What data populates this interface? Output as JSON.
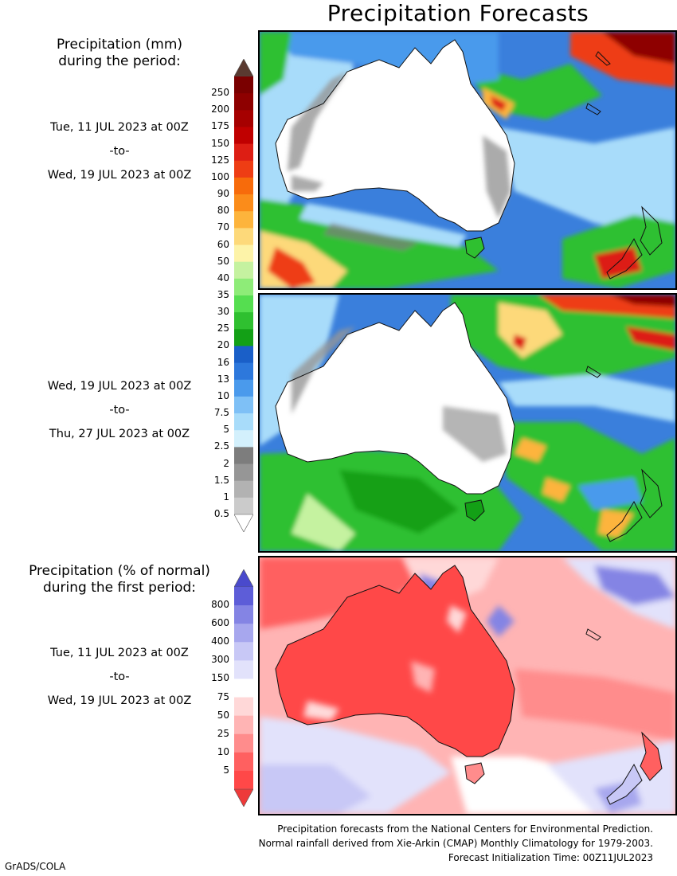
{
  "title": "Precipitation Forecasts",
  "legend1": {
    "header_lines": [
      "Precipitation (mm)",
      "during the period:"
    ],
    "labels": [
      "250",
      "200",
      "175",
      "150",
      "125",
      "100",
      "90",
      "80",
      "70",
      "60",
      "50",
      "40",
      "35",
      "30",
      "25",
      "20",
      "16",
      "13",
      "10",
      "7.5",
      "5",
      "2.5",
      "2",
      "1.5",
      "1",
      "0.5"
    ],
    "colors": [
      "#7a0000",
      "#8e0000",
      "#a60000",
      "#c00000",
      "#dd1e14",
      "#ee3d14",
      "#f76b0b",
      "#fb8c1a",
      "#fdb43c",
      "#fdd97a",
      "#fdf3a8",
      "#c5f2a0",
      "#8eec78",
      "#55de50",
      "#2fc030",
      "#13a016",
      "#1a5fc8",
      "#2d78dc",
      "#4a9aec",
      "#7ec0f6",
      "#a8dcfa",
      "#d3f0fc",
      "#7d7d7d",
      "#969696",
      "#b2b2b2",
      "#cbcbcb"
    ],
    "top_arrow_color": "#5a3a30",
    "bottom_arrow_color": "#ffffff"
  },
  "legend2": {
    "header_lines": [
      "Precipitation (% of normal)",
      "during the first period:"
    ],
    "labels": [
      "800",
      "600",
      "400",
      "300",
      "150",
      "75",
      "50",
      "25",
      "10",
      "5"
    ],
    "colors": [
      "#5d5dd8",
      "#8484e4",
      "#a7a7ee",
      "#c8c8f6",
      "#e2e2fb",
      "#ffffff",
      "#ffd8d8",
      "#ffb4b4",
      "#ff8c8c",
      "#ff6060",
      "#ff4848"
    ],
    "top_arrow_color": "#4a4acc",
    "bottom_arrow_color": "#ee3a3a"
  },
  "period1": {
    "start": "Tue, 11 JUL 2023 at 00Z",
    "sep": "-to-",
    "end": "Wed, 19 JUL 2023 at 00Z"
  },
  "period2": {
    "start": "Wed, 19 JUL 2023 at 00Z",
    "sep": "-to-",
    "end": "Thu, 27 JUL 2023 at 00Z"
  },
  "period3": {
    "start": "Tue, 11 JUL 2023 at 00Z",
    "sep": "-to-",
    "end": "Wed, 19 JUL 2023 at 00Z"
  },
  "footer": {
    "line1": "Precipitation forecasts from the National Centers for Environmental Prediction.",
    "line2": "Normal rainfall derived from Xie-Arkin (CMAP) Monthly Climatology for 1979-2003.",
    "line3": "Forecast Initialization Time: 00Z11JUL2023"
  },
  "credit": "GrADS/COLA"
}
